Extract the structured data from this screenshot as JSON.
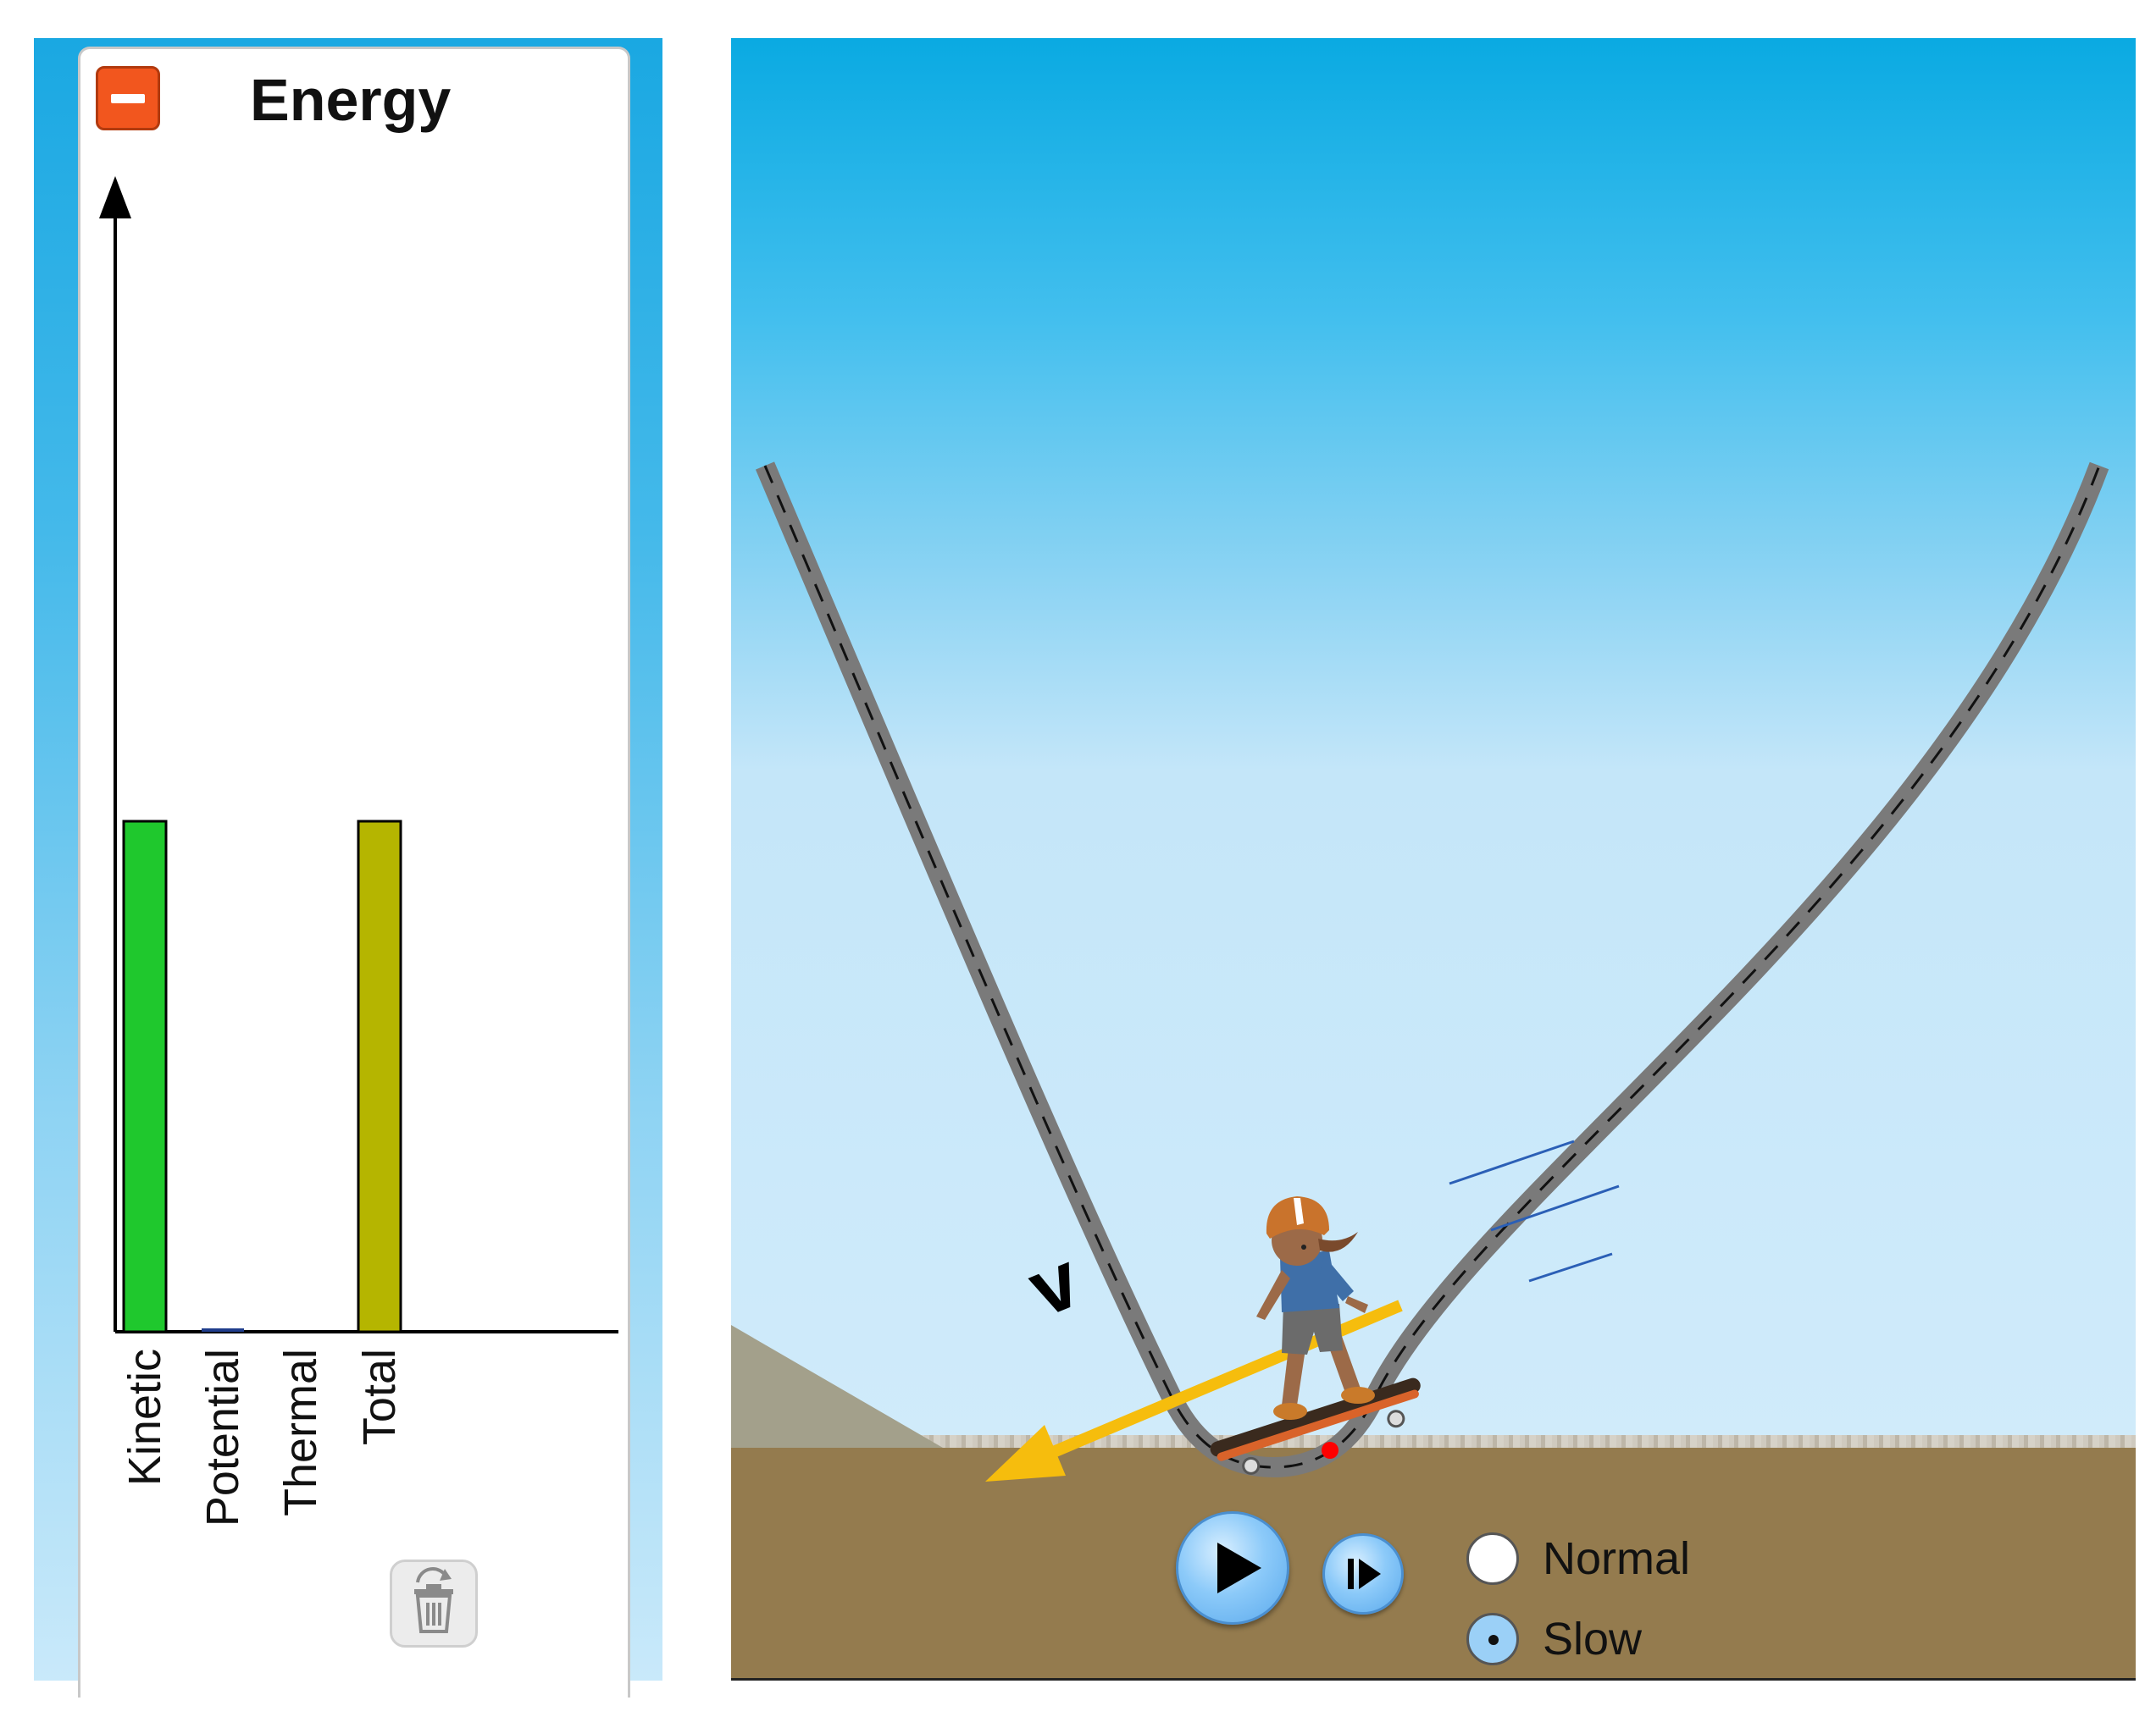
{
  "energy_panel": {
    "title": "Energy",
    "collapse_icon": "minus-icon",
    "clear_icon": "trash-icon"
  },
  "chart_data": {
    "type": "bar",
    "categories": [
      "Kinetic",
      "Potential",
      "Thermal",
      "Total"
    ],
    "values": [
      0.45,
      0.003,
      0,
      0.45
    ],
    "colors": [
      "#1fc82d",
      "#1f3d8c",
      "#ff0000",
      "#b5b500"
    ],
    "title": "Energy",
    "xlabel": "",
    "ylabel": "",
    "ylim": [
      0,
      1
    ],
    "grid": false
  },
  "simulation": {
    "velocity_label": "v",
    "speed_options": [
      {
        "label": "Normal",
        "selected": false
      },
      {
        "label": "Slow",
        "selected": true
      }
    ],
    "play_icon": "play-icon",
    "step_icon": "step-forward-icon"
  }
}
